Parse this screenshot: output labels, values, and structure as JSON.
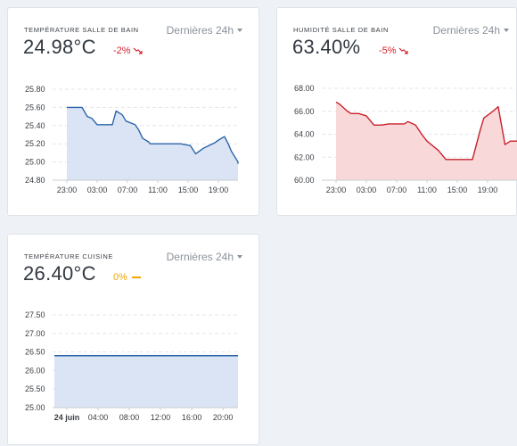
{
  "cards": [
    {
      "title": "Température salle de bain",
      "value": "24.98°C",
      "change": "-2%",
      "change_color": "#d3232b",
      "range_label": "Dernières 24h"
    },
    {
      "title": "Humidité salle de bain",
      "value": "63.40%",
      "change": "-5%",
      "change_color": "#d3232b",
      "range_label": "Dernières 24h"
    },
    {
      "title": "Température cuisine",
      "value": "26.40°C",
      "change": "0%",
      "change_color": "#f0a500",
      "range_label": "Dernières 24h"
    }
  ],
  "chart_data": [
    {
      "type": "area",
      "series_color": "#2c64a8",
      "fill_color": "#dbe4f4",
      "y_ticks": [
        "25.80",
        "25.60",
        "25.40",
        "25.20",
        "25.00",
        "24.80"
      ],
      "ylim": [
        24.8,
        25.8
      ],
      "x_ticks": [
        "23:00",
        "03:00",
        "07:00",
        "11:00",
        "15:00",
        "19:00"
      ],
      "x_tick_hours": [
        0,
        4,
        8,
        12,
        16,
        20
      ],
      "x": [
        0,
        2,
        2.7,
        3.3,
        4,
        6,
        6.5,
        7.3,
        7.8,
        9,
        9.5,
        10,
        10.8,
        11,
        15,
        16.3,
        17,
        18,
        19.5,
        20,
        20.8,
        21.3,
        21.7,
        22,
        23,
        24.5
      ],
      "y": [
        25.6,
        25.6,
        25.5,
        25.48,
        25.41,
        25.41,
        25.56,
        25.52,
        25.45,
        25.41,
        25.35,
        25.26,
        25.22,
        25.2,
        25.2,
        25.18,
        25.09,
        25.15,
        25.21,
        25.24,
        25.28,
        25.2,
        25.12,
        25.08,
        25.0,
        24.98
      ]
    },
    {
      "type": "area",
      "series_color": "#c8212b",
      "fill_color": "#f9d8da",
      "y_ticks": [
        "68.00",
        "66.00",
        "64.00",
        "62.00",
        "60.00"
      ],
      "ylim": [
        60,
        68
      ],
      "x_ticks": [
        "23:00",
        "03:00",
        "07:00",
        "11:00",
        "15:00",
        "19:00"
      ],
      "x_tick_hours": [
        0,
        4,
        8,
        12,
        16,
        20
      ],
      "x": [
        0,
        0.5,
        1,
        1.5,
        2,
        3,
        4,
        5,
        6,
        7,
        8,
        9,
        9.5,
        10.5,
        11.3,
        12,
        13.5,
        14.5,
        18,
        19,
        19.5,
        20.7,
        21.4,
        22.3,
        23,
        24.5
      ],
      "y": [
        66.8,
        66.6,
        66.3,
        66.0,
        65.8,
        65.8,
        65.6,
        64.8,
        64.8,
        64.9,
        64.9,
        64.9,
        65.1,
        64.8,
        64.0,
        63.4,
        62.6,
        61.8,
        61.8,
        64.3,
        65.4,
        66.0,
        66.4,
        63.1,
        63.4,
        63.4
      ]
    },
    {
      "type": "area",
      "series_color": "#2c64a8",
      "fill_color": "#dbe4f4",
      "y_ticks": [
        "27.50",
        "27.00",
        "26.50",
        "26.00",
        "25.50",
        "25.00"
      ],
      "ylim": [
        25,
        27.5
      ],
      "x_ticks": [
        "24 juin",
        "04:00",
        "08:00",
        "12:00",
        "16:00",
        "20:00"
      ],
      "x_tick_hours": [
        0,
        4,
        8,
        12,
        16,
        20
      ],
      "x": [
        -1.6,
        22.9
      ],
      "y": [
        26.4,
        26.4
      ]
    }
  ]
}
